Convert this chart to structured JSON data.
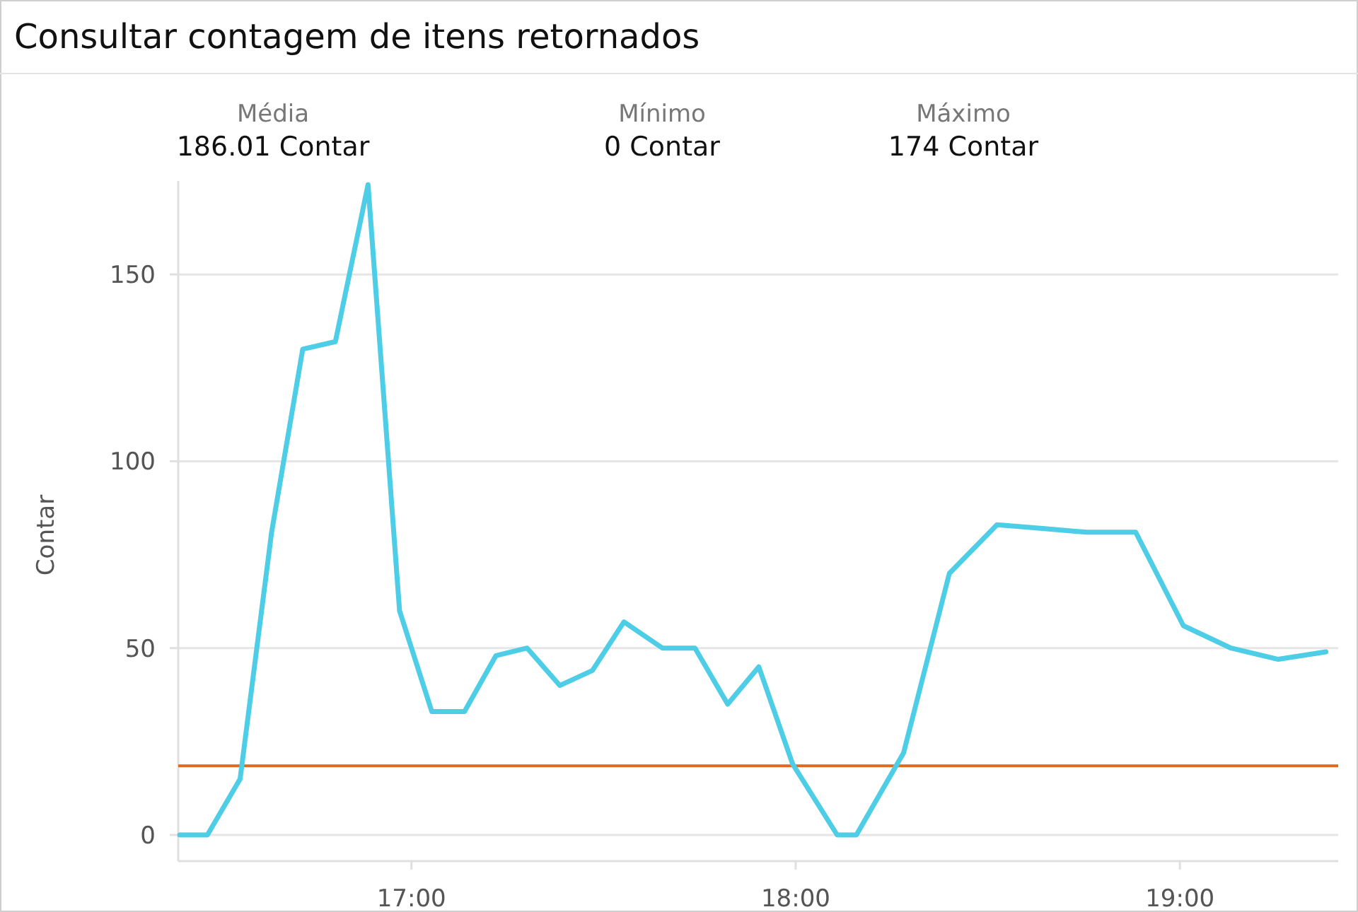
{
  "chart_data": {
    "type": "line",
    "title": "Consultar contagem de itens retornados",
    "ylabel": "Contar",
    "annotations": [
      "Média",
      "186.01 Contar",
      "Mínimo",
      "0 Contar",
      "Máximo",
      "174 Contar"
    ],
    "x": [
      16.397,
      16.469,
      16.554,
      16.636,
      16.717,
      16.802,
      16.887,
      16.969,
      17.053,
      17.138,
      17.22,
      17.301,
      17.386,
      17.471,
      17.553,
      17.653,
      17.738,
      17.823,
      17.904,
      17.992,
      18.108,
      18.158,
      18.281,
      18.4,
      18.524,
      18.643,
      18.757,
      18.885,
      19.009,
      19.133,
      19.256,
      19.38
    ],
    "series": [
      {
        "color": "#4ecde6",
        "values": [
          0,
          0,
          15,
          81,
          130,
          132,
          174,
          60,
          33,
          33,
          48,
          50,
          40,
          44,
          57,
          50,
          50,
          35,
          45,
          19,
          0,
          0,
          22,
          70,
          83,
          82,
          81,
          81,
          56,
          50,
          47,
          49
        ]
      }
    ],
    "xlim": [
      16.393,
      19.412
    ],
    "xticks": [
      {
        "value": 17,
        "label": "17:00"
      },
      {
        "value": 18,
        "label": "18:00"
      },
      {
        "value": 19,
        "label": "19:00"
      }
    ],
    "ylim": [
      -7,
      175
    ],
    "yticks": [
      0,
      50,
      100,
      150
    ],
    "grid": "y",
    "marker": "none",
    "line_style": "solid",
    "ref_lines": [
      {
        "axis": "y",
        "value": 18.5,
        "label": null,
        "color": "#e0691a"
      }
    ]
  }
}
